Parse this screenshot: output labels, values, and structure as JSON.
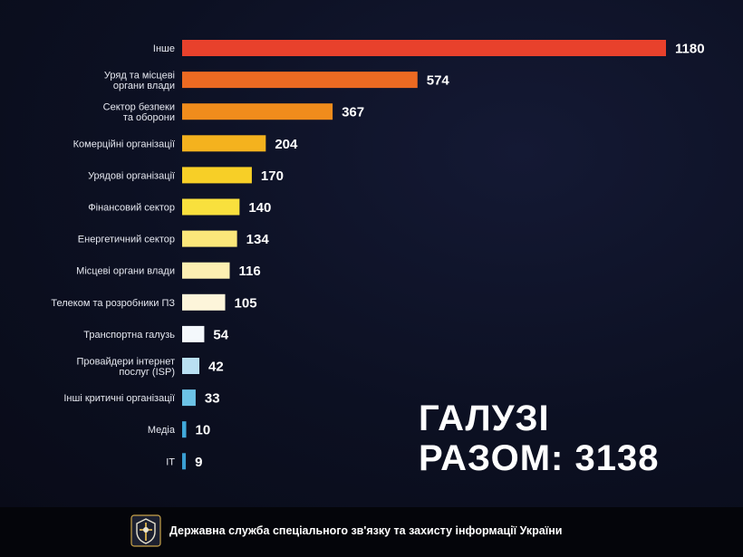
{
  "chart_data": {
    "type": "bar",
    "orientation": "horizontal",
    "categories": [
      "Інше",
      "Уряд та місцеві\nоргани влади",
      "Сектор безпеки\nта оборони",
      "Комерційні організації",
      "Урядові організації",
      "Фінансовий сектор",
      "Енергетичний сектор",
      "Місцеві органи влади",
      "Телеком та розробники ПЗ",
      "Транспортна галузь",
      "Провайдери інтернет\nпослуг (ISP)",
      "Інші критичні організації",
      "Медіа",
      "IT"
    ],
    "values": [
      1180,
      574,
      367,
      204,
      170,
      140,
      134,
      116,
      105,
      54,
      42,
      33,
      10,
      9
    ],
    "value_labels": [
      "1180",
      "574",
      "367",
      "204",
      "170",
      "140",
      "134",
      "116",
      "105",
      "54",
      "42",
      "33",
      "10",
      "9"
    ],
    "colors": [
      "#e8412c",
      "#ec6a22",
      "#f08c1c",
      "#f4b21e",
      "#f7cf27",
      "#f9e03d",
      "#fbe77a",
      "#fcefb2",
      "#fdf5da",
      "#f4f8fc",
      "#b9e0f2",
      "#6cc3e6",
      "#41a9da",
      "#3a9fd3"
    ],
    "xlim": [
      0,
      1180
    ],
    "grid": false,
    "legend": "none"
  },
  "total_label": {
    "line1": "ГАЛУЗІ",
    "line2": "РАЗОМ: 3138"
  },
  "footer": {
    "emblem_icon": "sszzi-emblem-icon",
    "org_name": "Державна служба спеціального зв'язку та захисту інформації України"
  }
}
